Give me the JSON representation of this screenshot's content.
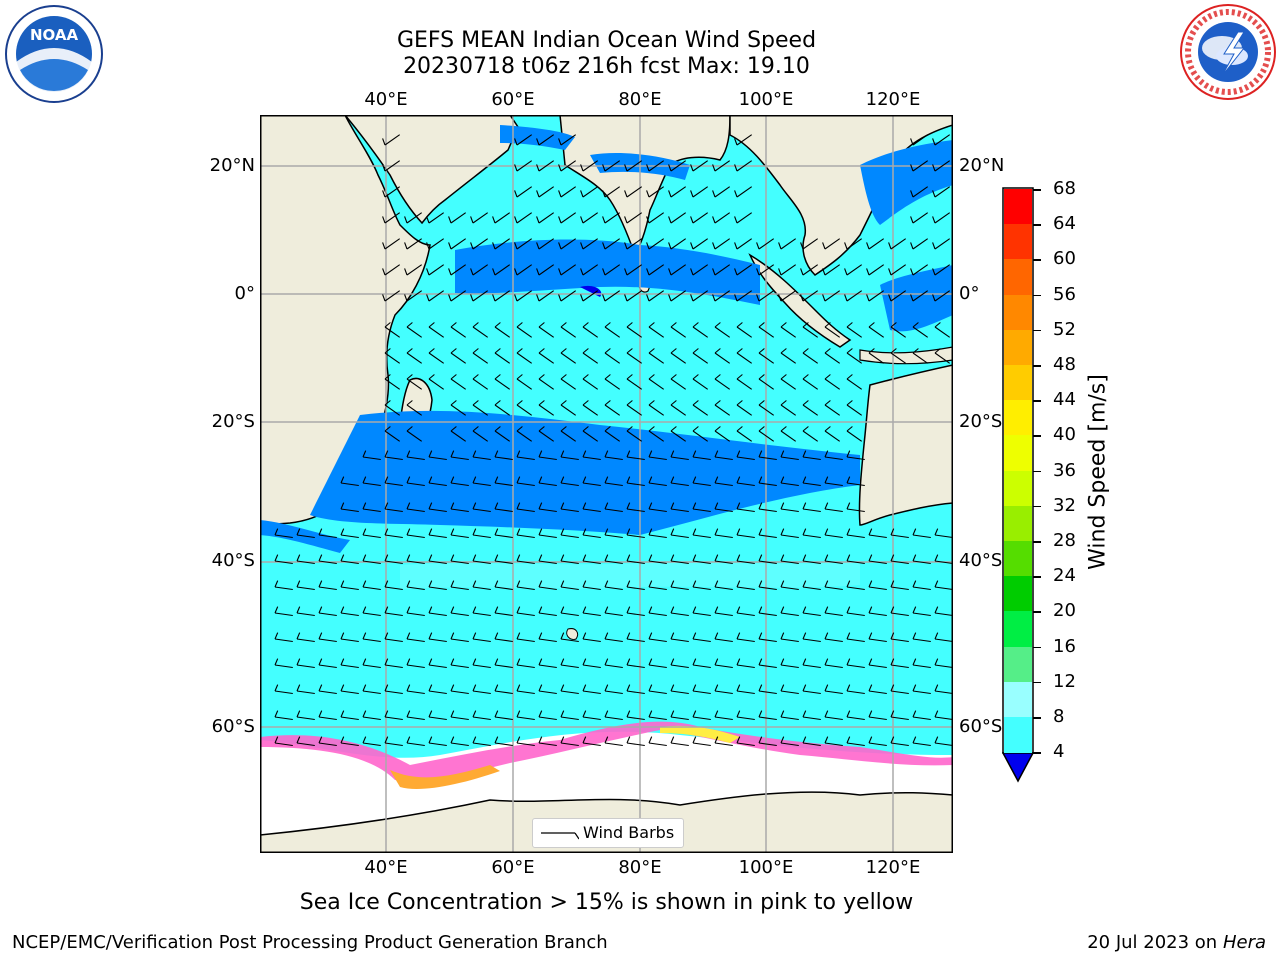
{
  "header": {
    "title_line1": "GEFS MEAN Indian Ocean Wind Speed",
    "title_line2": "20230718 t06z 216h fcst   Max: 19.10"
  },
  "logos": {
    "left": {
      "text": "NOAA",
      "ring_text": "NATIONAL OCEANIC AND ATMOSPHERIC ADMINISTRATION · U.S. DEPARTMENT OF COMMERCE"
    },
    "right": {
      "ring_text": "NATIONAL WEATHER SERVICE"
    }
  },
  "map": {
    "lon_labels": [
      "40°E",
      "60°E",
      "80°E",
      "100°E",
      "120°E"
    ],
    "lat_labels": [
      "20°N",
      "0°",
      "20°S",
      "40°S",
      "60°S"
    ],
    "legend_label": "Wind Barbs",
    "land_color": "#efeddc",
    "ice_colors": [
      "#ff66cc",
      "#ffaa33",
      "#ffee44"
    ]
  },
  "colorbar": {
    "label": "Wind Speed [m/s]",
    "ticks": [
      "68",
      "64",
      "60",
      "56",
      "52",
      "48",
      "44",
      "40",
      "36",
      "32",
      "28",
      "24",
      "20",
      "16",
      "12",
      "8",
      "4"
    ],
    "colors": [
      "#ff0000",
      "#ff3300",
      "#ff6600",
      "#ff8800",
      "#ffaa00",
      "#ffcc00",
      "#ffee00",
      "#eeff00",
      "#ccff00",
      "#99ee00",
      "#55dd00",
      "#00cc00",
      "#00ee44",
      "#55ee88",
      "#99ffff",
      "#44ffff",
      "#00ffff",
      "#0088ff",
      "#0000ee"
    ]
  },
  "annotation": "Sea Ice Concentration > 15% is shown in pink to yellow",
  "footer": {
    "left": "NCEP/EMC/Verification Post Processing Product Generation Branch",
    "right_prefix": "20 Jul 2023 on ",
    "right_italic": "Hera"
  }
}
